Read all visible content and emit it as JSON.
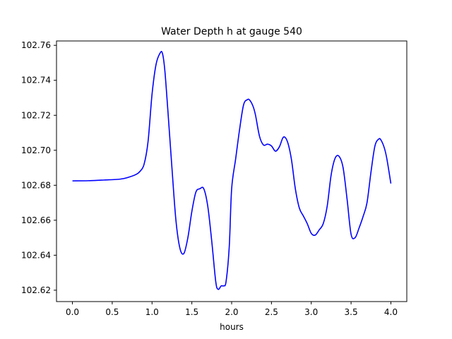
{
  "chart_data": {
    "type": "line",
    "title": "Water Depth h at gauge 540",
    "xlabel": "hours",
    "ylabel": "",
    "xlim": [
      -0.2,
      4.2
    ],
    "ylim": [
      102.6135,
      102.7625
    ],
    "xticks": [
      0.0,
      0.5,
      1.0,
      1.5,
      2.0,
      2.5,
      3.0,
      3.5,
      4.0
    ],
    "xtick_labels": [
      "0.0",
      "0.5",
      "1.0",
      "1.5",
      "2.0",
      "2.5",
      "3.0",
      "3.5",
      "4.0"
    ],
    "yticks": [
      102.62,
      102.64,
      102.66,
      102.68,
      102.7,
      102.72,
      102.74,
      102.76
    ],
    "ytick_labels": [
      "102.62",
      "102.64",
      "102.66",
      "102.68",
      "102.70",
      "102.72",
      "102.74",
      "102.76"
    ],
    "grid": false,
    "series": [
      {
        "color": "#0000ff",
        "x": [
          0.0,
          0.2,
          0.4,
          0.6,
          0.7,
          0.8,
          0.85,
          0.9,
          0.95,
          1.0,
          1.05,
          1.1,
          1.13,
          1.16,
          1.2,
          1.25,
          1.3,
          1.35,
          1.4,
          1.45,
          1.5,
          1.55,
          1.6,
          1.65,
          1.7,
          1.75,
          1.8,
          1.83,
          1.87,
          1.9,
          1.93,
          1.97,
          2.0,
          2.05,
          2.1,
          2.15,
          2.2,
          2.23,
          2.27,
          2.3,
          2.35,
          2.4,
          2.45,
          2.5,
          2.55,
          2.6,
          2.65,
          2.7,
          2.75,
          2.8,
          2.85,
          2.9,
          2.95,
          3.0,
          3.05,
          3.1,
          3.15,
          3.2,
          3.25,
          3.3,
          3.35,
          3.4,
          3.45,
          3.5,
          3.55,
          3.6,
          3.65,
          3.7,
          3.75,
          3.8,
          3.85,
          3.88,
          3.92,
          3.95,
          4.0
        ],
        "values": [
          102.6825,
          102.6826,
          102.683,
          102.6835,
          102.6845,
          102.6862,
          102.688,
          102.692,
          102.705,
          102.732,
          102.749,
          102.7555,
          102.7555,
          102.746,
          102.722,
          102.69,
          102.66,
          102.644,
          102.641,
          102.65,
          102.665,
          102.676,
          102.678,
          102.678,
          102.668,
          102.648,
          102.625,
          102.6205,
          102.6225,
          102.6225,
          102.625,
          102.645,
          102.678,
          102.695,
          102.712,
          102.726,
          102.729,
          102.7285,
          102.725,
          102.72,
          102.708,
          102.703,
          102.7035,
          102.7025,
          102.6995,
          102.702,
          102.7075,
          102.705,
          102.695,
          102.678,
          102.667,
          102.6625,
          102.658,
          102.6525,
          102.6515,
          102.6545,
          102.658,
          102.668,
          102.686,
          102.6955,
          102.6965,
          102.69,
          102.672,
          102.652,
          102.65,
          102.6555,
          102.662,
          102.67,
          102.6875,
          102.7025,
          102.7065,
          102.7055,
          102.701,
          102.695,
          102.681
        ]
      }
    ]
  }
}
